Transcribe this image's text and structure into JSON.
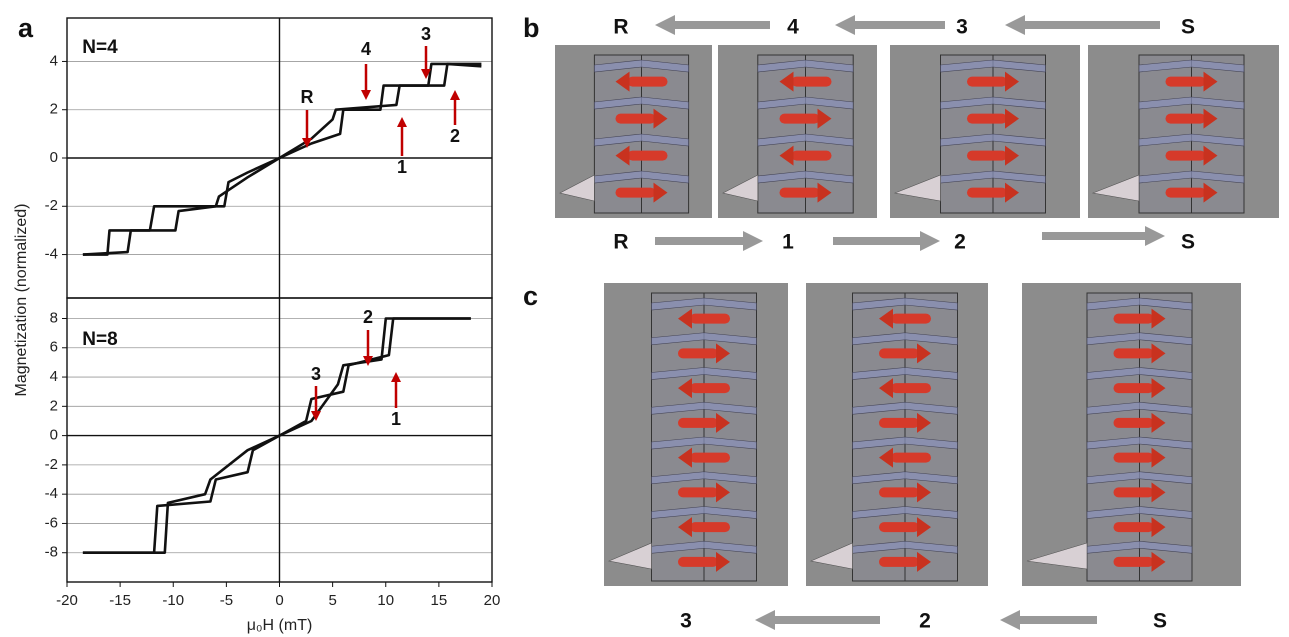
{
  "figure": {
    "panel_labels": [
      "a",
      "b",
      "c"
    ],
    "y_label": "Magnetization (normalized)"
  },
  "chart_data": [
    {
      "type": "line",
      "label": "N=4",
      "xlim": [
        -20,
        20
      ],
      "ylim": [
        -5.8,
        5.8
      ],
      "yticks": [
        -4,
        -2,
        0,
        2,
        4
      ],
      "grid": true,
      "annotations": [
        "R",
        "4",
        "3",
        "1",
        "2"
      ],
      "series": [
        {
          "color": "#111111",
          "x": [
            -18.5,
            -16.2,
            -16,
            -12.2,
            -11.8,
            -5.2,
            -4.8,
            -3,
            0,
            3,
            5,
            5.3,
            11,
            11.3,
            15.5,
            15.8,
            19
          ],
          "values": [
            -4,
            -4,
            -3,
            -3,
            -2,
            -2,
            -1,
            -0.6,
            0,
            0.8,
            1.6,
            2,
            2.2,
            3,
            3,
            3.9,
            3.8
          ]
        },
        {
          "color": "#111111",
          "x": [
            19,
            14.3,
            14,
            9.8,
            9.5,
            6,
            5.7,
            3,
            0,
            -3,
            -5.7,
            -6,
            -9.5,
            -9.8,
            -14,
            -14.3,
            -18.5
          ],
          "values": [
            3.9,
            3.9,
            3,
            3,
            2,
            2,
            1,
            0.6,
            0,
            -0.8,
            -1.6,
            -2,
            -2.2,
            -3,
            -3,
            -3.9,
            -4
          ]
        }
      ]
    },
    {
      "type": "line",
      "label": "N=8",
      "xlim": [
        -20,
        20
      ],
      "ylim": [
        -10,
        9.4
      ],
      "xticks": [
        -20,
        -15,
        -10,
        -5,
        0,
        5,
        10,
        15,
        20
      ],
      "yticks": [
        -8,
        -6,
        -4,
        -2,
        0,
        2,
        4,
        6,
        8
      ],
      "grid": true,
      "x_label": "μ₀H (mT)",
      "annotations": [
        "3",
        "2",
        "1"
      ],
      "series": [
        {
          "color": "#111111",
          "x": [
            -18.5,
            -10.8,
            -10.5,
            -7,
            -6.5,
            -3,
            0,
            2.5,
            3,
            6,
            6.5,
            10.3,
            10.7,
            18
          ],
          "values": [
            -8,
            -8,
            -4.6,
            -4,
            -3,
            -1,
            0,
            1,
            2.5,
            3,
            4.8,
            5.5,
            8,
            8
          ]
        },
        {
          "color": "#111111",
          "x": [
            18,
            10,
            9.6,
            6,
            5.5,
            3,
            0,
            -2.5,
            -3,
            -6,
            -6.5,
            -11.5,
            -11.8,
            -18.5
          ],
          "values": [
            8,
            8,
            5.2,
            4.8,
            3.5,
            1,
            0,
            -1,
            -2.5,
            -3,
            -4.5,
            -4.8,
            -8,
            -8
          ]
        }
      ]
    }
  ],
  "panel_b": {
    "top_labels": [
      "R",
      "4",
      "3",
      "S"
    ],
    "bottom_labels": [
      "R",
      "1",
      "2",
      "S"
    ]
  },
  "panel_c": {
    "labels": [
      "3",
      "2",
      "S"
    ]
  }
}
